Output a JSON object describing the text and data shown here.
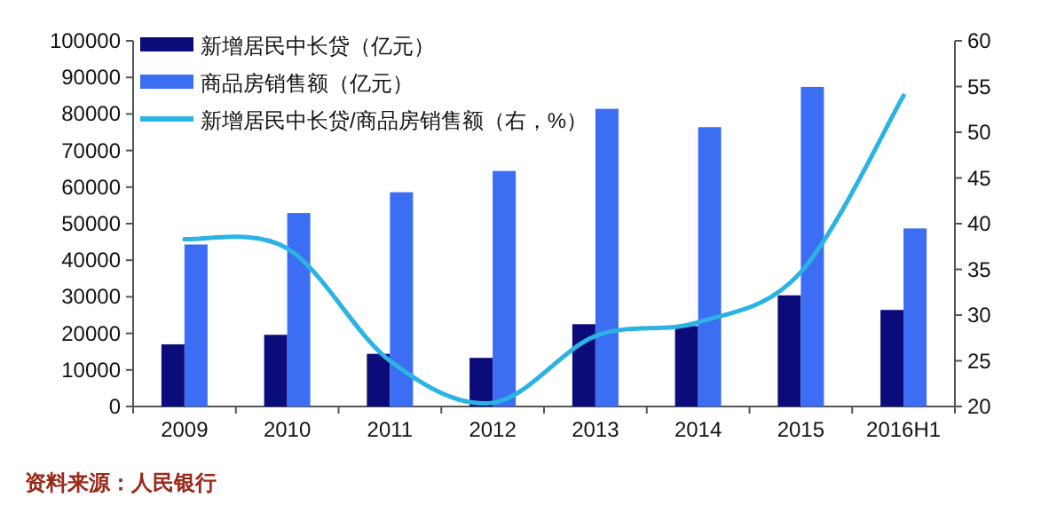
{
  "chart_data": {
    "type": "bar",
    "categories": [
      "2009",
      "2010",
      "2011",
      "2012",
      "2013",
      "2014",
      "2015",
      "2016H1"
    ],
    "series": [
      {
        "name": "新增居民中长贷（亿元）",
        "color": "#0b0b7a",
        "values": [
          17000,
          19600,
          14400,
          13300,
          22500,
          22000,
          30400,
          26400
        ]
      },
      {
        "name": "商品房销售额（亿元）",
        "color": "#3b6ef2",
        "values": [
          44300,
          52900,
          58600,
          64400,
          81400,
          76400,
          87400,
          48700
        ]
      },
      {
        "name": "新增居民中长贷/商品房销售额（右，%）",
        "type": "line",
        "axis": "y2",
        "color": "#2bb3e3",
        "values": [
          38.3,
          37.3,
          25.0,
          20.4,
          27.7,
          29.2,
          34.7,
          54.0
        ]
      }
    ],
    "ylim": [
      0,
      100000
    ],
    "yticks": [
      0,
      10000,
      20000,
      30000,
      40000,
      50000,
      60000,
      70000,
      80000,
      90000,
      100000
    ],
    "y2lim": [
      20,
      60
    ],
    "y2ticks": [
      20,
      25,
      30,
      35,
      40,
      45,
      50,
      55,
      60
    ],
    "legend": "top left",
    "grid": false,
    "annotations": [
      "资料来源：人民银行"
    ]
  }
}
